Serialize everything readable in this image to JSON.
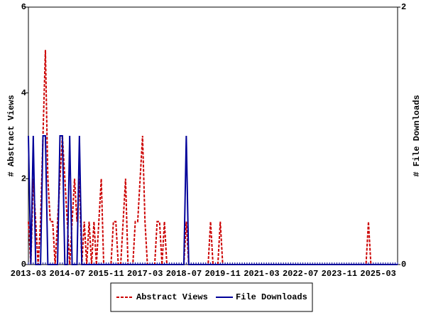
{
  "chart_data": {
    "type": "line",
    "y_label": "# Abstract Views",
    "y2_label": "# File Downloads",
    "categories": [
      "2013-03",
      null,
      null,
      null,
      null,
      null,
      null,
      null,
      null,
      null,
      null,
      null,
      null,
      null,
      null,
      null,
      "2014-07",
      null,
      null,
      null,
      null,
      null,
      null,
      null,
      null,
      null,
      null,
      null,
      null,
      null,
      null,
      null,
      "2015-11",
      null,
      null,
      null,
      null,
      null,
      null,
      null,
      null,
      null,
      null,
      null,
      null,
      null,
      null,
      null,
      "2017-03",
      null,
      null,
      null,
      null,
      null,
      null,
      null,
      null,
      null,
      null,
      null,
      null,
      null,
      null,
      null,
      "2018-07",
      null,
      null,
      null,
      null,
      null,
      null,
      null,
      null,
      null,
      null,
      null,
      null,
      null,
      null,
      null,
      "2019-11",
      null,
      null,
      null,
      null,
      null,
      null,
      null,
      null,
      null,
      null,
      null,
      null,
      null,
      null,
      null,
      "2021-03",
      null,
      null,
      null,
      null,
      null,
      null,
      null,
      null,
      null,
      null,
      null,
      null,
      null,
      null,
      null,
      "2022-07",
      null,
      null,
      null,
      null,
      null,
      null,
      null,
      null,
      null,
      null,
      null,
      null,
      null,
      null,
      null,
      "2023-11",
      null,
      null,
      null,
      null,
      null,
      null,
      null,
      null,
      null,
      null,
      null,
      null,
      null,
      null,
      null,
      "2025-03",
      null,
      null,
      null,
      null,
      null,
      null,
      null,
      null
    ],
    "series": [
      {
        "name": "Abstract Views",
        "color": "#cc0000",
        "dashed": true,
        "values": [
          1,
          0,
          2,
          1,
          0,
          1,
          3,
          5,
          2,
          1,
          1,
          0,
          1,
          2,
          3,
          2,
          1,
          0,
          1,
          2,
          1,
          2,
          0,
          1,
          0,
          1,
          0,
          1,
          0,
          1,
          2,
          0,
          0,
          0,
          0,
          1,
          1,
          0,
          0,
          1,
          2,
          0,
          0,
          0,
          1,
          1,
          2,
          3,
          1,
          0,
          0,
          0,
          0,
          1,
          1,
          0,
          1,
          0,
          0,
          0,
          0,
          0,
          0,
          0,
          0,
          1,
          0,
          0,
          0,
          0,
          0,
          0,
          0,
          0,
          0,
          1,
          0,
          0,
          0,
          1,
          0,
          0,
          0,
          0,
          0,
          0,
          0,
          0,
          0,
          0,
          0,
          0,
          0,
          0,
          0,
          0,
          0,
          0,
          0,
          0,
          0,
          0,
          0,
          0,
          0,
          0,
          0,
          0,
          0,
          0,
          0,
          0,
          0,
          0,
          0,
          0,
          0,
          0,
          0,
          0,
          0,
          0,
          0,
          0,
          0,
          0,
          0,
          0,
          0,
          0,
          0,
          0,
          0,
          0,
          0,
          0,
          0,
          0,
          0,
          0,
          1,
          0,
          0,
          0,
          0,
          0,
          0,
          0,
          0,
          0,
          0,
          0,
          0
        ]
      },
      {
        "name": "File Downloads",
        "color": "#000099",
        "dashed": false,
        "axis": "y2",
        "values": [
          1,
          0,
          1,
          0,
          0,
          0,
          1,
          1,
          0,
          0,
          0,
          0,
          0,
          1,
          1,
          0,
          0,
          1,
          0,
          0,
          0,
          1,
          0,
          0,
          0,
          0,
          0,
          0,
          0,
          0,
          0,
          0,
          0,
          0,
          0,
          0,
          0,
          0,
          0,
          0,
          0,
          0,
          0,
          0,
          0,
          0,
          0,
          0,
          0,
          0,
          0,
          0,
          0,
          0,
          0,
          0,
          0,
          0,
          0,
          0,
          0,
          0,
          0,
          0,
          0,
          1,
          0,
          0,
          0,
          0,
          0,
          0,
          0,
          0,
          0,
          0,
          0,
          0,
          0,
          0,
          0,
          0,
          0,
          0,
          0,
          0,
          0,
          0,
          0,
          0,
          0,
          0,
          0,
          0,
          0,
          0,
          0,
          0,
          0,
          0,
          0,
          0,
          0,
          0,
          0,
          0,
          0,
          0,
          0,
          0,
          0,
          0,
          0,
          0,
          0,
          0,
          0,
          0,
          0,
          0,
          0,
          0,
          0,
          0,
          0,
          0,
          0,
          0,
          0,
          0,
          0,
          0,
          0,
          0,
          0,
          0,
          0,
          0,
          0,
          0,
          0,
          0,
          0,
          0,
          0,
          0,
          0,
          0,
          0,
          0,
          0,
          0,
          0
        ]
      }
    ],
    "ylim": [
      0,
      6
    ],
    "yticks": [
      0,
      2,
      4,
      6
    ],
    "y2lim": [
      0,
      2
    ],
    "y2ticks": [
      0,
      2
    ],
    "legend": "bottom"
  }
}
